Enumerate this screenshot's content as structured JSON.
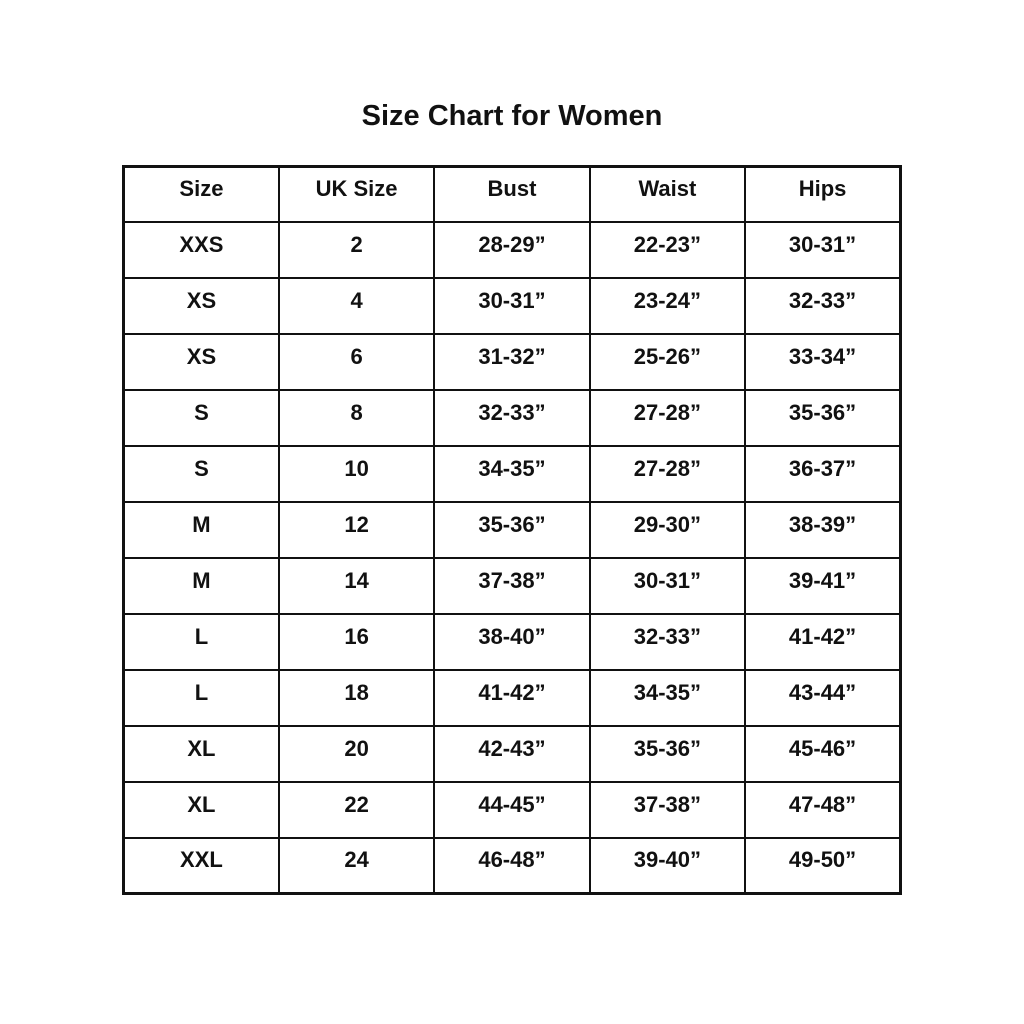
{
  "chart_data": {
    "type": "table",
    "title": "Size Chart for Women",
    "columns": [
      "Size",
      "UK Size",
      "Bust",
      "Waist",
      "Hips"
    ],
    "rows": [
      [
        "XXS",
        "2",
        "28-29”",
        "22-23”",
        "30-31”"
      ],
      [
        "XS",
        "4",
        "30-31”",
        "23-24”",
        "32-33”"
      ],
      [
        "XS",
        "6",
        "31-32”",
        "25-26”",
        "33-34”"
      ],
      [
        "S",
        "8",
        "32-33”",
        "27-28”",
        "35-36”"
      ],
      [
        "S",
        "10",
        "34-35”",
        "27-28”",
        "36-37”"
      ],
      [
        "M",
        "12",
        "35-36”",
        "29-30”",
        "38-39”"
      ],
      [
        "M",
        "14",
        "37-38”",
        "30-31”",
        "39-41”"
      ],
      [
        "L",
        "16",
        "38-40”",
        "32-33”",
        "41-42”"
      ],
      [
        "L",
        "18",
        "41-42”",
        "34-35”",
        "43-44”"
      ],
      [
        "XL",
        "20",
        "42-43”",
        "35-36”",
        "45-46”"
      ],
      [
        "XL",
        "22",
        "44-45”",
        "37-38”",
        "47-48”"
      ],
      [
        "XXL",
        "24",
        "46-48”",
        "39-40”",
        "49-50”"
      ]
    ],
    "layout": {
      "grid": "on",
      "text_color": "#111111",
      "border_color": "#111111",
      "background_color": "#ffffff"
    }
  }
}
